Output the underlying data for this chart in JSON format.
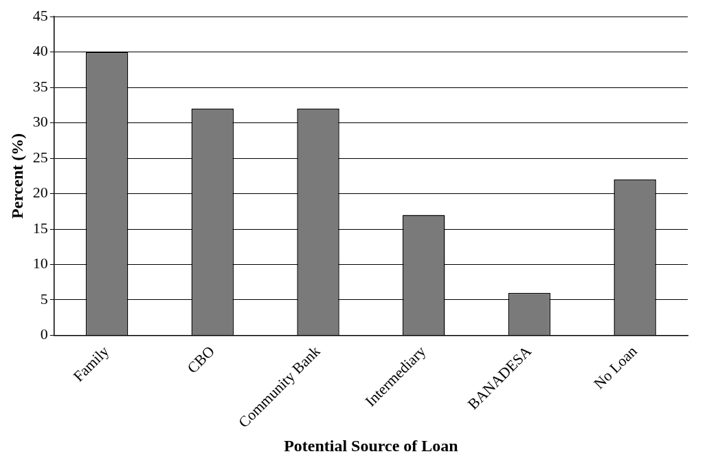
{
  "chart_data": {
    "type": "bar",
    "xlabel": "Potential Source of Loan",
    "ylabel": "Percent (%)",
    "categories": [
      "Family",
      "CBO",
      "Community Bank",
      "Intermediary",
      "BANADESA",
      "No Loan"
    ],
    "values": [
      40,
      32,
      32,
      17,
      6,
      22
    ],
    "color": "#7a7a7a",
    "ylim": [
      0,
      45
    ],
    "yticks": [
      0,
      5,
      10,
      15,
      20,
      25,
      30,
      35,
      40,
      45
    ],
    "grid": "y"
  }
}
